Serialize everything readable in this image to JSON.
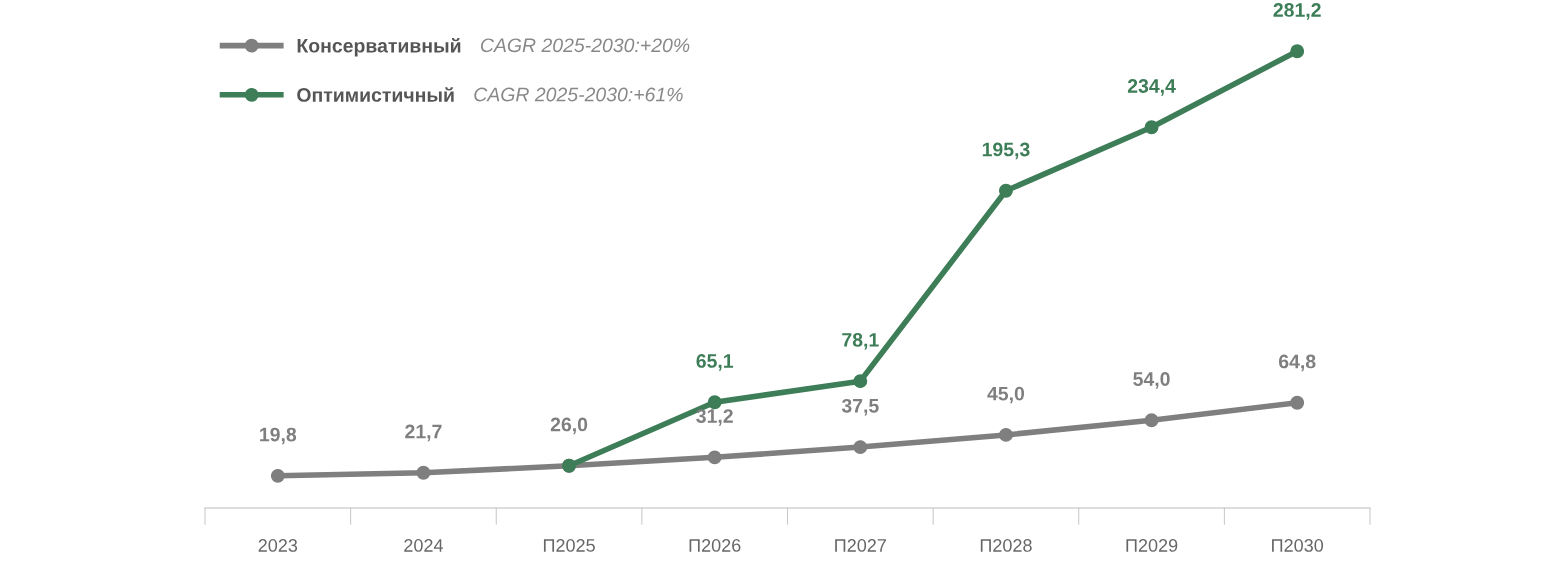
{
  "chart_data": {
    "type": "line",
    "categories": [
      "2023",
      "2024",
      "П2025",
      "П2026",
      "П2027",
      "П2028",
      "П2029",
      "П2030"
    ],
    "series": [
      {
        "name": "Консервативный",
        "color": "#7f7f7f",
        "values": [
          19.8,
          21.7,
          26.0,
          31.2,
          37.5,
          45.0,
          54.0,
          64.8
        ],
        "value_labels": [
          "19,8",
          "21,7",
          "26,0",
          "31,2",
          "37,5",
          "45,0",
          "54,0",
          "64,8"
        ]
      },
      {
        "name": "Оптимистичный",
        "color": "#3d7d57",
        "values": [
          null,
          null,
          26.0,
          65.1,
          78.1,
          195.3,
          234.4,
          281.2
        ],
        "value_labels": [
          null,
          null,
          null,
          "65,1",
          "78,1",
          "195,3",
          "234,4",
          "281,2"
        ]
      }
    ],
    "annotations": [
      "CAGR 2025-2030:+20%",
      "CAGR 2025-2030:+61%"
    ],
    "legend": "top left",
    "marker": "circle",
    "line_style": "solid",
    "grid": false
  }
}
